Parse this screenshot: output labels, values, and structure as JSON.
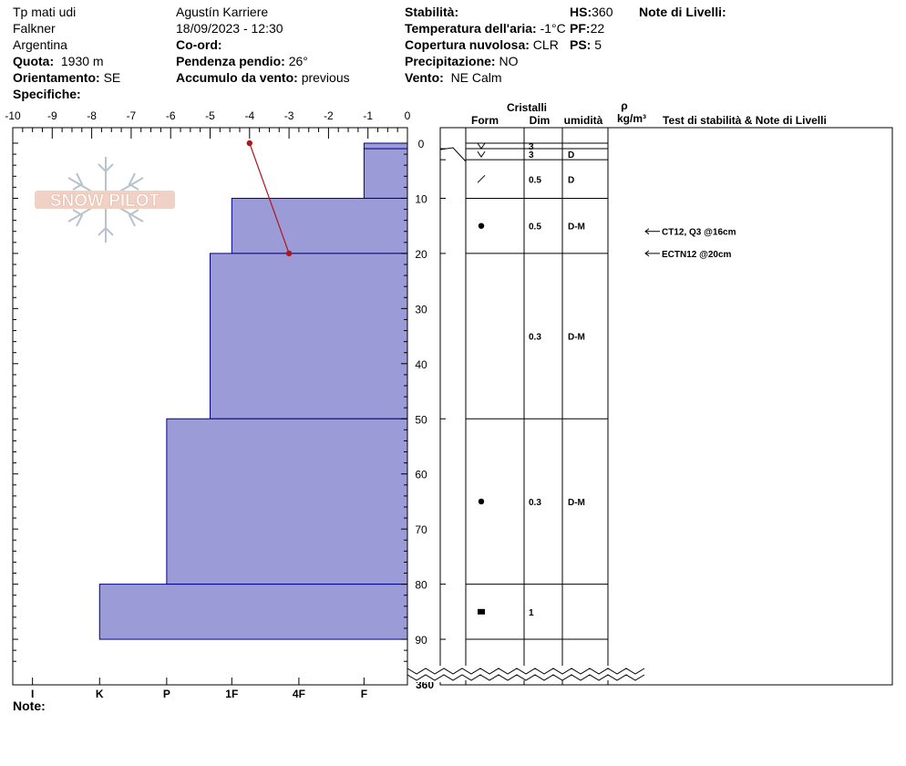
{
  "header": {
    "col1": {
      "location": "Tp mati udi",
      "range": "Falkner",
      "country": "Argentina",
      "elevation_label": "Quota:",
      "elevation_value": "1930 m",
      "aspect_label": "Orientamento:",
      "aspect_value": "SE",
      "specifics_label": "Specifiche:"
    },
    "col2": {
      "observer": "Agustín Karriere",
      "datetime": "18/09/2023 - 12:30",
      "coord_label": "Co-ord:",
      "slope_label": "Pendenza pendio:",
      "slope_value": "26°",
      "wind_load_label": "Accumulo da vento:",
      "wind_load_value": "previous"
    },
    "col3": {
      "stability_label": "Stabilità:",
      "air_temp_label": "Temperatura dell'aria:",
      "air_temp_value": "-1°C",
      "cloud_label": "Copertura nuvolosa:",
      "cloud_value": "CLR",
      "precip_label": "Precipitazione:",
      "precip_value": "NO",
      "wind_label": "Vento:",
      "wind_value": "NE Calm"
    },
    "col4": {
      "hs_label": "HS:",
      "hs_value": "360",
      "pf_label": "PF:",
      "pf_value": "22",
      "ps_label": "PS:",
      "ps_value": "5"
    },
    "layer_notes_label": "Note di Livelli:"
  },
  "columns": {
    "crystals": "Cristalli",
    "form": "Form",
    "dim": "Dim",
    "humidity": "umidità",
    "rho": "ρ",
    "density_unit": "kg/m³",
    "stability_tests": "Test di stabilità & Note di Livelli"
  },
  "notes_label": "Note:",
  "logo_text": "SNOW PILOT",
  "chart_data": {
    "type": "snow-profile",
    "temperature_axis": {
      "ticks": [
        "-10",
        "-9",
        "-8",
        "-7",
        "-6",
        "-5",
        "-4",
        "-3",
        "-2",
        "-1",
        "0"
      ],
      "range": [
        -10,
        0
      ]
    },
    "depth_axis": {
      "ticks": [
        "0",
        "10",
        "20",
        "30",
        "40",
        "50",
        "60",
        "70",
        "80",
        "90"
      ],
      "range": [
        0,
        98
      ],
      "bottom_label": "360"
    },
    "hardness_axis": {
      "ticks": [
        "I",
        "K",
        "P",
        "1F",
        "4F",
        "F"
      ]
    },
    "hardness_layers": [
      {
        "top": 0,
        "bottom": 1,
        "hardness": -1.1
      },
      {
        "top": 1,
        "bottom": 10,
        "hardness": -1.1
      },
      {
        "top": 10,
        "bottom": 20,
        "hardness": -4.45
      },
      {
        "top": 20,
        "bottom": 50,
        "hardness": -5.0
      },
      {
        "top": 50,
        "bottom": 80,
        "hardness": -6.1
      },
      {
        "top": 80,
        "bottom": 90,
        "hardness": -7.8
      }
    ],
    "temperature_profile": [
      {
        "depth": 0,
        "temp": -4.0
      },
      {
        "depth": 20,
        "temp": -3.0
      }
    ],
    "layers": [
      {
        "top": 0,
        "bottom": 1,
        "form": "V",
        "dim": "3",
        "moisture": ""
      },
      {
        "top": 1,
        "bottom": 3,
        "form": "V",
        "dim": "3",
        "moisture": "D"
      },
      {
        "top": 3,
        "bottom": 10,
        "form": "/",
        "dim": "0.5",
        "moisture": "D"
      },
      {
        "top": 10,
        "bottom": 20,
        "form": "●",
        "dim": "0.5",
        "moisture": "D-M"
      },
      {
        "top": 20,
        "bottom": 50,
        "form": "",
        "dim": "0.3",
        "moisture": "D-M"
      },
      {
        "top": 50,
        "bottom": 80,
        "form": "●",
        "dim": "0.3",
        "moisture": "D-M"
      },
      {
        "top": 80,
        "bottom": 90,
        "form": "■",
        "dim": "1",
        "moisture": ""
      }
    ],
    "stability_tests": [
      {
        "depth": 16,
        "text": "CT12, Q3 @16cm"
      },
      {
        "depth": 20,
        "text": "ECTN12 @20cm"
      }
    ],
    "colors": {
      "fill": "#9b9bd7",
      "stroke": "#00008b",
      "temp": "#b01818"
    }
  }
}
